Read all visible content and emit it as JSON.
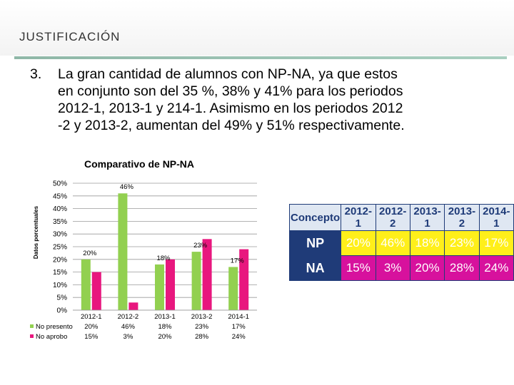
{
  "slide": {
    "title": "JUSTIFICACIÓN",
    "item_number": "3.",
    "paragraph_lines": [
      "La gran cantidad de alumnos con NP-NA, ya que estos",
      "en conjunto son del 35 %, 38% y 41% para los periodos",
      "2012-1, 2013-1 y 214-1. Asimismo en los periodos 2012",
      "-2 y 2013-2, aumentan del 49% y 51% respectivamente."
    ]
  },
  "colors": {
    "no_presento": "#92d050",
    "no_aprobo": "#e8177e",
    "table_header_bg": "#dfe7f2",
    "table_border": "#1f3b78",
    "table_highlight_yellow": "#ffef1a",
    "table_highlight_magenta": "#d7119d"
  },
  "chart_data": {
    "type": "bar",
    "title": "Comparativo de NP-NA",
    "ylabel": "Datos porcentuales",
    "xlabel": "",
    "ylim": [
      0,
      50
    ],
    "y_ticks": [
      "0%",
      "5%",
      "10%",
      "15%",
      "20%",
      "25%",
      "30%",
      "35%",
      "40%",
      "45%",
      "50%"
    ],
    "grid": true,
    "legend_position": "bottom-left",
    "categories": [
      "2012-1",
      "2012-2",
      "2013-1",
      "2013-2",
      "2014-1"
    ],
    "series": [
      {
        "name": "No presento",
        "values": [
          20,
          46,
          18,
          23,
          17
        ],
        "table_labels": [
          "20%",
          "46%",
          "18%",
          "23%",
          "17%"
        ]
      },
      {
        "name": "No aprobo",
        "values": [
          15,
          3,
          20,
          28,
          24
        ],
        "table_labels": [
          "15%",
          "3%",
          "20%",
          "28%",
          "24%"
        ]
      }
    ],
    "data_labels": [
      {
        "category": "2012-1",
        "text": "20%"
      },
      {
        "category": "2012-2",
        "text": "46%"
      },
      {
        "category": "2013-1",
        "text": "18%"
      },
      {
        "category": "2013-2",
        "text": "23%"
      },
      {
        "category": "2014-1",
        "text": "17%"
      }
    ]
  },
  "comparison_table": {
    "headers": [
      "Concepto",
      "2012-1",
      "2012-2",
      "2013-1",
      "2013-2",
      "2014-1"
    ],
    "rows": [
      {
        "label": "NP",
        "values": [
          "20%",
          "46%",
          "18%",
          "23%",
          "17%"
        ]
      },
      {
        "label": "NA",
        "values": [
          "15%",
          "3%",
          "20%",
          "28%",
          "24%"
        ]
      }
    ]
  }
}
